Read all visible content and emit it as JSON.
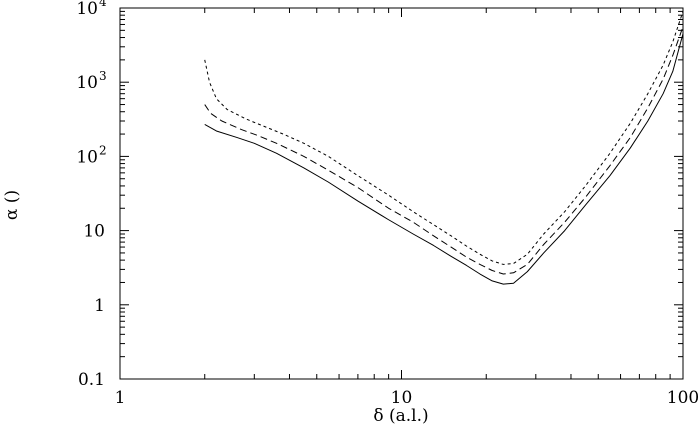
{
  "chart_data": {
    "type": "line",
    "xlabel": "δ (a.l.)",
    "ylabel": "α ()",
    "xscale": "log",
    "yscale": "log",
    "xlim": [
      1,
      100
    ],
    "ylim": [
      0.1,
      10000
    ],
    "grid": false,
    "x_ticks": [
      {
        "value": 1,
        "label": "1"
      },
      {
        "value": 10,
        "label": "10"
      },
      {
        "value": 100,
        "label": "100"
      }
    ],
    "y_ticks": [
      {
        "value": 0.1,
        "label": "0.1",
        "base": "",
        "exp": ""
      },
      {
        "value": 1,
        "label": "1",
        "base": "",
        "exp": ""
      },
      {
        "value": 10,
        "label": "10",
        "base": "",
        "exp": ""
      },
      {
        "value": 100,
        "label": "",
        "base": "10",
        "exp": "2"
      },
      {
        "value": 1000,
        "label": "",
        "base": "10",
        "exp": "3"
      },
      {
        "value": 10000,
        "label": "",
        "base": "10",
        "exp": "4"
      }
    ],
    "series": [
      {
        "style": "solid",
        "points": [
          [
            2.0,
            270
          ],
          [
            2.2,
            220
          ],
          [
            2.6,
            180
          ],
          [
            3.0,
            150
          ],
          [
            3.6,
            110
          ],
          [
            4.5,
            70
          ],
          [
            5.5,
            45
          ],
          [
            7.0,
            25
          ],
          [
            9.0,
            14
          ],
          [
            11,
            9
          ],
          [
            13,
            6.3
          ],
          [
            15,
            4.5
          ],
          [
            17,
            3.4
          ],
          [
            19,
            2.6
          ],
          [
            21,
            2.1
          ],
          [
            23,
            1.9
          ],
          [
            25,
            1.95
          ],
          [
            28,
            2.8
          ],
          [
            32,
            5.0
          ],
          [
            38,
            10
          ],
          [
            45,
            22
          ],
          [
            55,
            55
          ],
          [
            65,
            130
          ],
          [
            75,
            300
          ],
          [
            85,
            700
          ],
          [
            92,
            1400
          ],
          [
            100,
            4500
          ]
        ]
      },
      {
        "style": "dashed",
        "points": [
          [
            2.0,
            500
          ],
          [
            2.1,
            380
          ],
          [
            2.3,
            300
          ],
          [
            2.7,
            230
          ],
          [
            3.1,
            190
          ],
          [
            3.6,
            150
          ],
          [
            4.5,
            100
          ],
          [
            5.5,
            65
          ],
          [
            7.0,
            38
          ],
          [
            9.0,
            20
          ],
          [
            11,
            13
          ],
          [
            13,
            8.5
          ],
          [
            15,
            6.0
          ],
          [
            17,
            4.4
          ],
          [
            19,
            3.5
          ],
          [
            21,
            2.9
          ],
          [
            23,
            2.6
          ],
          [
            25,
            2.7
          ],
          [
            28,
            3.5
          ],
          [
            32,
            6.5
          ],
          [
            38,
            13
          ],
          [
            45,
            28
          ],
          [
            55,
            75
          ],
          [
            65,
            180
          ],
          [
            75,
            450
          ],
          [
            85,
            1100
          ],
          [
            92,
            2300
          ],
          [
            100,
            5600
          ]
        ]
      },
      {
        "style": "dotted",
        "points": [
          [
            2.0,
            2000
          ],
          [
            2.08,
            1000
          ],
          [
            2.2,
            600
          ],
          [
            2.4,
            430
          ],
          [
            2.8,
            320
          ],
          [
            3.2,
            260
          ],
          [
            3.8,
            200
          ],
          [
            4.5,
            150
          ],
          [
            5.5,
            100
          ],
          [
            7.0,
            55
          ],
          [
            9.0,
            30
          ],
          [
            11,
            18
          ],
          [
            13,
            12
          ],
          [
            15,
            8.5
          ],
          [
            17,
            6.2
          ],
          [
            19,
            4.8
          ],
          [
            21,
            3.9
          ],
          [
            23,
            3.5
          ],
          [
            25,
            3.6
          ],
          [
            28,
            4.8
          ],
          [
            32,
            9
          ],
          [
            38,
            18
          ],
          [
            45,
            40
          ],
          [
            55,
            110
          ],
          [
            65,
            280
          ],
          [
            75,
            700
          ],
          [
            85,
            1700
          ],
          [
            92,
            3500
          ],
          [
            100,
            9000
          ]
        ]
      }
    ]
  }
}
